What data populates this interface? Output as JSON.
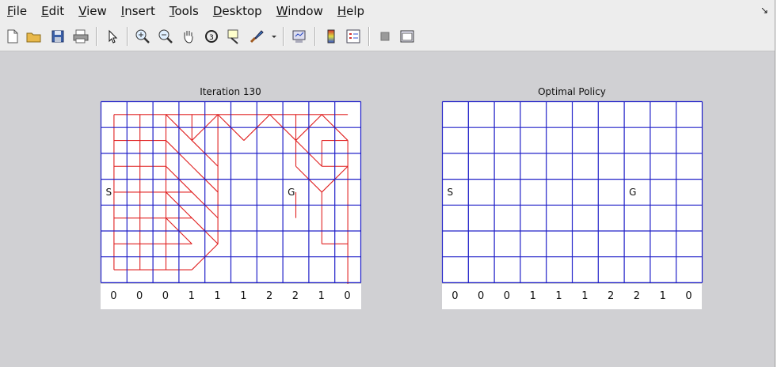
{
  "menu": [
    "File",
    "Edit",
    "View",
    "Insert",
    "Tools",
    "Desktop",
    "Window",
    "Help"
  ],
  "menu_mnemonic": [
    "F",
    "E",
    "V",
    "I",
    "T",
    "D",
    "W",
    "H"
  ],
  "toolbar_icons": [
    "new-figure-icon",
    "open-file-icon",
    "save-icon",
    "print-icon",
    "pointer-icon",
    "zoom-in-icon",
    "zoom-out-icon",
    "pan-hand-icon",
    "rotate-3d-icon",
    "data-cursor-icon",
    "brush-icon",
    "brush-dropdown-icon",
    "link-plot-icon",
    "colorbar-icon",
    "legend-icon",
    "hide-plot-tools-icon",
    "show-plot-tools-icon"
  ],
  "left_panel": {
    "title": "Iteration 130",
    "start_label": "S",
    "goal_label": "G",
    "values": [
      "0",
      "0",
      "0",
      "1",
      "1",
      "1",
      "2",
      "2",
      "1",
      "0"
    ]
  },
  "right_panel": {
    "title": "Optimal Policy",
    "start_label": "S",
    "goal_label": "G",
    "values": [
      "0",
      "0",
      "0",
      "1",
      "1",
      "1",
      "2",
      "2",
      "1",
      "0"
    ]
  },
  "colors": {
    "grid": "#2020c8",
    "path": "#e02020",
    "background": "#d0d0d3"
  }
}
